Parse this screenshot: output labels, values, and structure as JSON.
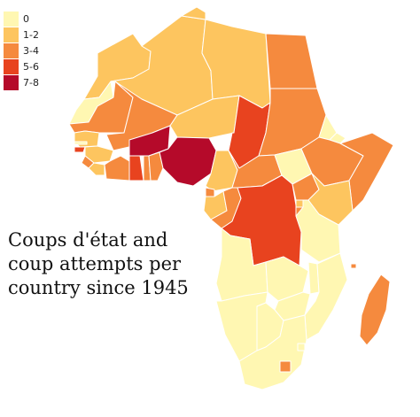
{
  "legend": {
    "items": [
      {
        "label": "0",
        "color": "#FFF7B2"
      },
      {
        "label": "1-2",
        "color": "#FDC55F"
      },
      {
        "label": "3-4",
        "color": "#F58A3E"
      },
      {
        "label": "5-6",
        "color": "#E8431F"
      },
      {
        "label": "7-8",
        "color": "#B50A2A"
      }
    ]
  },
  "caption": {
    "line1": "Coups d'état and",
    "line2": "coup attempts per",
    "line3": "country since 1945"
  },
  "map": {
    "regions": [
      {
        "name": "morocco",
        "class": "1-2"
      },
      {
        "name": "western-sahara",
        "class": "0"
      },
      {
        "name": "algeria",
        "class": "1-2"
      },
      {
        "name": "tunisia",
        "class": "1-2"
      },
      {
        "name": "libya",
        "class": "1-2"
      },
      {
        "name": "egypt",
        "class": "3-4"
      },
      {
        "name": "mauritania",
        "class": "3-4"
      },
      {
        "name": "mali",
        "class": "3-4"
      },
      {
        "name": "niger",
        "class": "1-2"
      },
      {
        "name": "chad",
        "class": "5-6"
      },
      {
        "name": "sudan",
        "class": "3-4"
      },
      {
        "name": "senegal",
        "class": "1-2"
      },
      {
        "name": "gambia",
        "class": "0"
      },
      {
        "name": "guinea-bissau",
        "class": "5-6"
      },
      {
        "name": "guinea",
        "class": "1-2"
      },
      {
        "name": "sierra-leone",
        "class": "3-4"
      },
      {
        "name": "liberia",
        "class": "1-2"
      },
      {
        "name": "ivory-coast",
        "class": "3-4"
      },
      {
        "name": "burkina-faso",
        "class": "7-8"
      },
      {
        "name": "ghana",
        "class": "5-6"
      },
      {
        "name": "togo",
        "class": "3-4"
      },
      {
        "name": "benin",
        "class": "3-4"
      },
      {
        "name": "nigeria",
        "class": "7-8"
      },
      {
        "name": "cameroon",
        "class": "1-2"
      },
      {
        "name": "central-african-republic",
        "class": "3-4"
      },
      {
        "name": "south-sudan",
        "class": "0"
      },
      {
        "name": "ethiopia",
        "class": "3-4"
      },
      {
        "name": "eritrea",
        "class": "0"
      },
      {
        "name": "djibouti",
        "class": "0"
      },
      {
        "name": "somalia",
        "class": "3-4"
      },
      {
        "name": "equatorial-guinea",
        "class": "3-4"
      },
      {
        "name": "gabon",
        "class": "1-2"
      },
      {
        "name": "congo",
        "class": "3-4"
      },
      {
        "name": "dr-congo",
        "class": "5-6"
      },
      {
        "name": "uganda",
        "class": "3-4"
      },
      {
        "name": "kenya",
        "class": "1-2"
      },
      {
        "name": "rwanda",
        "class": "1-2"
      },
      {
        "name": "burundi",
        "class": "3-4"
      },
      {
        "name": "tanzania",
        "class": "0"
      },
      {
        "name": "angola",
        "class": "0"
      },
      {
        "name": "zambia",
        "class": "0"
      },
      {
        "name": "malawi",
        "class": "0"
      },
      {
        "name": "mozambique",
        "class": "0"
      },
      {
        "name": "zimbabwe",
        "class": "0"
      },
      {
        "name": "namibia",
        "class": "0"
      },
      {
        "name": "botswana",
        "class": "0"
      },
      {
        "name": "south-africa",
        "class": "0"
      },
      {
        "name": "lesotho",
        "class": "3-4"
      },
      {
        "name": "swaziland",
        "class": "0"
      },
      {
        "name": "madagascar",
        "class": "3-4"
      },
      {
        "name": "comoros",
        "class": "3-4"
      }
    ]
  }
}
